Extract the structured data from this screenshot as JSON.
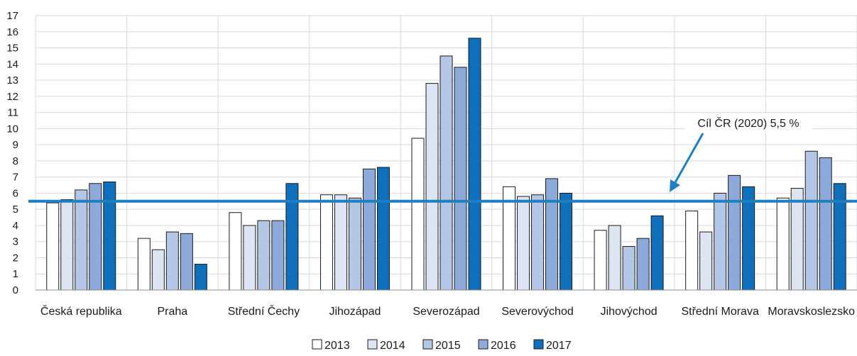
{
  "chart_data": {
    "type": "bar",
    "categories": [
      "Česká republika",
      "Praha",
      "Střední Čechy",
      "Jihozápad",
      "Severozápad",
      "Severovýchod",
      "Jihovýchod",
      "Střední Morava",
      "Moravskoslezsko"
    ],
    "series": [
      {
        "name": "2013",
        "color": "#ffffff",
        "values": [
          5.4,
          3.2,
          4.8,
          5.9,
          9.4,
          6.4,
          3.7,
          4.9,
          5.7
        ]
      },
      {
        "name": "2014",
        "color": "#dde5f2",
        "values": [
          5.6,
          2.5,
          4.0,
          5.9,
          12.8,
          5.8,
          4.0,
          3.6,
          6.3
        ]
      },
      {
        "name": "2015",
        "color": "#b4c7e7",
        "values": [
          6.2,
          3.6,
          4.3,
          5.7,
          14.5,
          5.9,
          2.7,
          6.0,
          8.6
        ]
      },
      {
        "name": "2016",
        "color": "#8eaadb",
        "values": [
          6.6,
          3.5,
          4.3,
          7.5,
          13.8,
          6.9,
          3.2,
          7.1,
          8.2
        ]
      },
      {
        "name": "2017",
        "color": "#0f6fba",
        "values": [
          6.7,
          1.6,
          6.6,
          7.6,
          15.6,
          6.0,
          4.6,
          6.4,
          6.6
        ]
      }
    ],
    "y_ticks": [
      "0",
      "1",
      "2",
      "3",
      "4",
      "5",
      "6",
      "7",
      "8",
      "9",
      "10",
      "11",
      "12",
      "13",
      "14",
      "15",
      "16",
      "17"
    ],
    "ylim": [
      0,
      17
    ],
    "grid": true,
    "legend_position": "bottom-center",
    "reference_line": {
      "value": 5.5,
      "color": "#1f7fc1"
    },
    "annotation": {
      "text": "Cíl ČR (2020) 5,5 %"
    }
  }
}
